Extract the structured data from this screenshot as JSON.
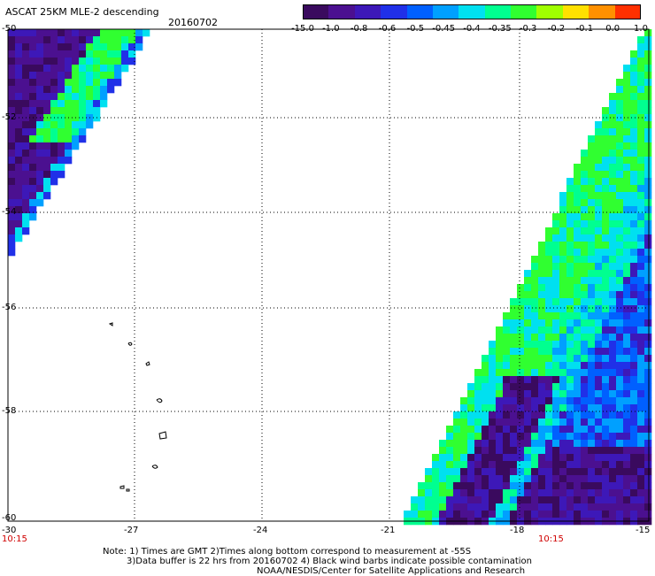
{
  "header": {
    "title": "ASCAT 25KM MLE-2 descending",
    "date": "20160702"
  },
  "colorbar": {
    "labels": [
      "-15.0",
      "-1.0",
      "-0.8",
      "-0.6",
      "-0.5",
      "-0.45",
      "-0.4",
      "-0.35",
      "-0.3",
      "-0.2",
      "-0.1",
      "0.0",
      "1.0"
    ],
    "colors": [
      "#3a0a5e",
      "#4b1090",
      "#3d18b8",
      "#2030e8",
      "#0060ff",
      "#00a0ff",
      "#00e0f0",
      "#00ff90",
      "#30ff30",
      "#a0ff00",
      "#ffe000",
      "#ff9000",
      "#ff3000"
    ]
  },
  "axes": {
    "lat_labels": [
      "-50",
      "-52",
      "-54",
      "-56",
      "-58",
      "-60"
    ],
    "lon_labels": [
      "-30",
      "-27",
      "-24",
      "-21",
      "-18",
      "-15"
    ],
    "time_labels": [
      "10:15",
      "10:15"
    ]
  },
  "notes": {
    "line1": "Note: 1) Times are GMT 2)Times along bottom correspond to measurement at -55S",
    "line2": "3)Data buffer is 22 hrs from 20160702 4) Black wind barbs indicate possible contamination",
    "line3": "NOAA/NESDIS/Center for Satellite Applications and Research"
  },
  "palette": {
    "dark_purple": "#3a0a5e",
    "purple": "#4b1090",
    "indigo": "#3d18b8",
    "blue": "#2030e8",
    "light_blue": "#0060ff",
    "sky": "#00a0ff",
    "cyan": "#00e0f0",
    "aqua_green": "#00ff90",
    "green": "#30ff30"
  }
}
